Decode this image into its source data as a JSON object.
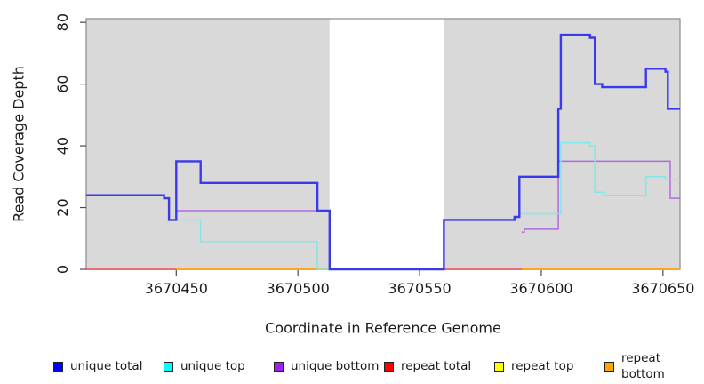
{
  "chart_data": {
    "type": "line",
    "subtype": "step-coverage",
    "title": "",
    "xlabel": "Coordinate in Reference Genome",
    "ylabel": "Read Coverage Depth",
    "xlim": [
      3670413,
      3670657
    ],
    "ylim": [
      0,
      81.2
    ],
    "x_ticks": [
      "3670450",
      "3670500",
      "3670550",
      "3670600",
      "3670650"
    ],
    "x_tick_values": [
      3670450,
      3670500,
      3670550,
      3670600,
      3670650
    ],
    "y_ticks": [
      "0",
      "20",
      "40",
      "60",
      "80"
    ],
    "y_tick_values": [
      0,
      20,
      40,
      60,
      80
    ],
    "grid": false,
    "plot_bg_color": "#ffffff",
    "region_color": "#d9d9d9",
    "box_color": "#8a8a8a",
    "coverage_regions": [
      {
        "x0": 3670413,
        "x1": 3670513
      },
      {
        "x0": 3670560,
        "x1": 3670657
      }
    ],
    "series": [
      {
        "name": "repeat top",
        "line_color": "#ffff00",
        "swatch_color": "#ffff00",
        "line_width": 1.5,
        "steps": [
          [
            3670413,
            0
          ],
          [
            3670657,
            null
          ]
        ]
      },
      {
        "name": "repeat total",
        "line_color": "#e8457a",
        "swatch_color": "#ff0000",
        "line_width": 1.6,
        "steps": [
          [
            3670413,
            0
          ],
          [
            3670657,
            null
          ]
        ]
      },
      {
        "name": "repeat bottom",
        "line_color": "#ffa51e",
        "swatch_color": "#ffa500",
        "line_width": 2,
        "steps": [
          [
            3670450,
            0
          ],
          [
            3670513,
            null
          ],
          [
            3670592,
            0
          ],
          [
            3670657,
            null
          ]
        ]
      },
      {
        "name": "unique bottom",
        "line_color": "#b16adc",
        "swatch_color": "#a020f0",
        "line_width": 1.5,
        "steps": [
          [
            3670450,
            19
          ],
          [
            3670513,
            0
          ],
          [
            3670560,
            null
          ],
          [
            3670592,
            12
          ],
          [
            3670593,
            13
          ],
          [
            3670607,
            35
          ],
          [
            3670653,
            23
          ],
          [
            3670657,
            null
          ]
        ]
      },
      {
        "name": "unique top",
        "line_color": "#7fe9e9",
        "swatch_color": "#00ffff",
        "line_width": 1.5,
        "steps": [
          [
            3670450,
            16
          ],
          [
            3670460,
            9
          ],
          [
            3670508,
            0
          ],
          [
            3670513,
            null
          ],
          [
            3670591,
            18
          ],
          [
            3670608,
            41
          ],
          [
            3670620,
            40
          ],
          [
            3670622,
            25
          ],
          [
            3670626,
            24
          ],
          [
            3670643,
            30
          ],
          [
            3670651,
            29
          ],
          [
            3670657,
            null
          ]
        ]
      },
      {
        "name": "unique total",
        "line_color": "#3a3aec",
        "swatch_color": "#0000ff",
        "line_width": 2.4,
        "steps": [
          [
            3670413,
            24
          ],
          [
            3670445,
            23
          ],
          [
            3670447,
            16
          ],
          [
            3670450,
            35
          ],
          [
            3670460,
            28
          ],
          [
            3670508,
            19
          ],
          [
            3670513,
            0
          ],
          [
            3670560,
            16
          ],
          [
            3670589,
            17
          ],
          [
            3670591,
            30
          ],
          [
            3670607,
            52
          ],
          [
            3670608,
            76
          ],
          [
            3670620,
            75
          ],
          [
            3670622,
            60
          ],
          [
            3670625,
            59
          ],
          [
            3670643,
            65
          ],
          [
            3670651,
            64
          ],
          [
            3670652,
            52
          ],
          [
            3670657,
            null
          ]
        ]
      }
    ],
    "legend": {
      "position": "bottom",
      "items": [
        {
          "label": "unique total",
          "color": "#0000ff"
        },
        {
          "label": "unique top",
          "color": "#00ffff"
        },
        {
          "label": "unique bottom",
          "color": "#a020f0"
        },
        {
          "label": "repeat total",
          "color": "#ff0000"
        },
        {
          "label": "repeat top",
          "color": "#ffff00"
        },
        {
          "label": "repeat bottom",
          "color": "#ffa500"
        }
      ]
    },
    "axis_text_color": "#1a1a1a",
    "tick_color": "#4a4a4a"
  }
}
